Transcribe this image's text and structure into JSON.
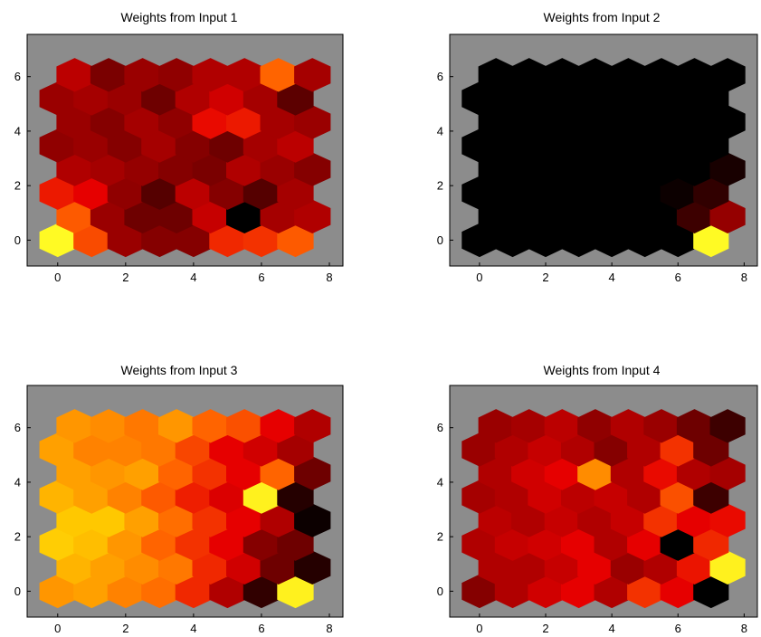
{
  "figure": {
    "background": "#ffffff",
    "plot_background": "#8c8c8c",
    "colormap": "hot",
    "colormap_stops": [
      "#000000",
      "#7a0000",
      "#e60000",
      "#ff6400",
      "#ffc800",
      "#ffff28"
    ]
  },
  "chart_data": [
    {
      "type": "heatmap",
      "layout": "hexagonal",
      "title": "Weights from Input 1",
      "xlabel": "",
      "ylabel": "",
      "xlim": [
        -0.9,
        8.4
      ],
      "ylim": [
        -0.95,
        7.55
      ],
      "xticks": [
        0,
        2,
        4,
        6,
        8
      ],
      "yticks": [
        0,
        2,
        4,
        6
      ],
      "grid": false,
      "legend": "none",
      "grid_rows": 8,
      "grid_cols": 8,
      "values": [
        [
          0.98,
          0.55,
          0.26,
          0.22,
          0.22,
          0.48,
          0.5,
          0.58
        ],
        [
          0.58,
          0.26,
          0.18,
          0.18,
          0.34,
          0.0,
          0.28,
          0.3
        ],
        [
          0.45,
          0.4,
          0.24,
          0.14,
          0.32,
          0.22,
          0.14,
          0.28
        ],
        [
          0.3,
          0.28,
          0.25,
          0.22,
          0.2,
          0.3,
          0.26,
          0.22
        ],
        [
          0.24,
          0.26,
          0.22,
          0.28,
          0.22,
          0.18,
          0.28,
          0.32
        ],
        [
          0.26,
          0.22,
          0.28,
          0.24,
          0.42,
          0.45,
          0.28,
          0.26
        ],
        [
          0.26,
          0.28,
          0.26,
          0.18,
          0.3,
          0.36,
          0.28,
          0.15
        ],
        [
          0.32,
          0.2,
          0.26,
          0.24,
          0.3,
          0.3,
          0.6,
          0.28
        ]
      ]
    },
    {
      "type": "heatmap",
      "layout": "hexagonal",
      "title": "Weights from Input 2",
      "xlabel": "",
      "ylabel": "",
      "xlim": [
        -0.9,
        8.4
      ],
      "ylim": [
        -0.95,
        7.55
      ],
      "xticks": [
        0,
        2,
        4,
        6,
        8
      ],
      "yticks": [
        0,
        2,
        4,
        6
      ],
      "grid": false,
      "legend": "none",
      "grid_rows": 8,
      "grid_cols": 8,
      "values": [
        [
          0.0,
          0.0,
          0.0,
          0.0,
          0.0,
          0.0,
          0.0,
          0.98
        ],
        [
          0.0,
          0.0,
          0.0,
          0.0,
          0.0,
          0.0,
          0.1,
          0.25
        ],
        [
          0.0,
          0.0,
          0.0,
          0.0,
          0.0,
          0.0,
          0.02,
          0.08
        ],
        [
          0.0,
          0.0,
          0.0,
          0.0,
          0.0,
          0.0,
          0.0,
          0.04
        ],
        [
          0.0,
          0.0,
          0.0,
          0.0,
          0.0,
          0.0,
          0.0,
          0.0
        ],
        [
          0.0,
          0.0,
          0.0,
          0.0,
          0.0,
          0.0,
          0.0,
          0.0
        ],
        [
          0.0,
          0.0,
          0.0,
          0.0,
          0.0,
          0.0,
          0.0,
          0.0
        ],
        [
          0.0,
          0.0,
          0.0,
          0.0,
          0.0,
          0.0,
          0.0,
          0.0
        ]
      ]
    },
    {
      "type": "heatmap",
      "layout": "hexagonal",
      "title": "Weights from Input 3",
      "xlabel": "",
      "ylabel": "",
      "xlim": [
        -0.9,
        8.4
      ],
      "ylim": [
        -0.95,
        7.55
      ],
      "xticks": [
        0,
        2,
        4,
        6,
        8
      ],
      "yticks": [
        0,
        2,
        4,
        6
      ],
      "grid": false,
      "legend": "none",
      "grid_rows": 8,
      "grid_cols": 8,
      "values": [
        [
          0.7,
          0.72,
          0.66,
          0.62,
          0.48,
          0.3,
          0.08,
          0.95
        ],
        [
          0.76,
          0.72,
          0.68,
          0.64,
          0.48,
          0.36,
          0.18,
          0.06
        ],
        [
          0.82,
          0.78,
          0.7,
          0.6,
          0.5,
          0.4,
          0.22,
          0.18
        ],
        [
          0.8,
          0.8,
          0.72,
          0.62,
          0.5,
          0.4,
          0.3,
          0.02
        ],
        [
          0.76,
          0.72,
          0.66,
          0.58,
          0.46,
          0.38,
          0.95,
          0.06
        ],
        [
          0.72,
          0.7,
          0.72,
          0.6,
          0.5,
          0.4,
          0.6,
          0.18
        ],
        [
          0.72,
          0.66,
          0.66,
          0.64,
          0.54,
          0.4,
          0.36,
          0.28
        ],
        [
          0.7,
          0.68,
          0.64,
          0.7,
          0.6,
          0.56,
          0.4,
          0.3
        ]
      ]
    },
    {
      "type": "heatmap",
      "layout": "hexagonal",
      "title": "Weights from Input 4",
      "xlabel": "",
      "ylabel": "",
      "xlim": [
        -0.9,
        8.4
      ],
      "ylim": [
        -0.95,
        7.55
      ],
      "xticks": [
        0,
        2,
        4,
        6,
        8
      ],
      "yticks": [
        0,
        2,
        4,
        6
      ],
      "grid": false,
      "legend": "none",
      "grid_rows": 8,
      "grid_cols": 8,
      "values": [
        [
          0.22,
          0.3,
          0.36,
          0.4,
          0.3,
          0.5,
          0.4,
          0.0
        ],
        [
          0.3,
          0.3,
          0.34,
          0.4,
          0.26,
          0.3,
          0.44,
          0.95
        ],
        [
          0.3,
          0.34,
          0.36,
          0.4,
          0.3,
          0.4,
          0.0,
          0.48
        ],
        [
          0.32,
          0.3,
          0.34,
          0.3,
          0.34,
          0.5,
          0.4,
          0.42
        ],
        [
          0.28,
          0.3,
          0.36,
          0.32,
          0.34,
          0.3,
          0.56,
          0.1
        ],
        [
          0.3,
          0.36,
          0.4,
          0.68,
          0.3,
          0.42,
          0.3,
          0.28
        ],
        [
          0.26,
          0.3,
          0.34,
          0.3,
          0.22,
          0.3,
          0.5,
          0.18
        ],
        [
          0.26,
          0.28,
          0.32,
          0.24,
          0.3,
          0.26,
          0.18,
          0.1
        ]
      ]
    }
  ]
}
